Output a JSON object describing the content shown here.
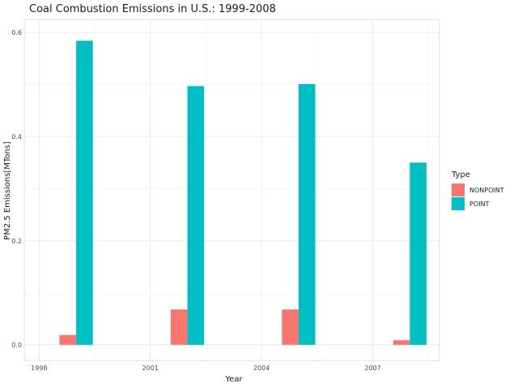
{
  "chart_data": {
    "type": "bar",
    "title": "Coal Combustion Emissions in U.S.: 1999-2008",
    "xlabel": "Year",
    "ylabel": "PM2.5 Emissions[MTons]",
    "x": [
      1999,
      2002,
      2005,
      2008
    ],
    "x_ticks": [
      "1998",
      "2001",
      "2004",
      "2007"
    ],
    "x_tick_values": [
      1998,
      2001,
      2004,
      2007
    ],
    "y_ticks": [
      "0.0",
      "0.2",
      "0.4",
      "0.6"
    ],
    "y_tick_values": [
      0.0,
      0.2,
      0.4,
      0.6
    ],
    "xlim": [
      1997.6,
      2008.8
    ],
    "ylim": [
      -0.03,
      0.625
    ],
    "grid": true,
    "legend": {
      "title": "Type",
      "placement": "right"
    },
    "series": [
      {
        "name": "NONPOINT",
        "color": "#F8766D",
        "values": [
          0.019,
          0.068,
          0.068,
          0.009
        ]
      },
      {
        "name": "POINT",
        "color": "#00BFC4",
        "values": [
          0.584,
          0.497,
          0.501,
          0.35
        ]
      }
    ]
  }
}
